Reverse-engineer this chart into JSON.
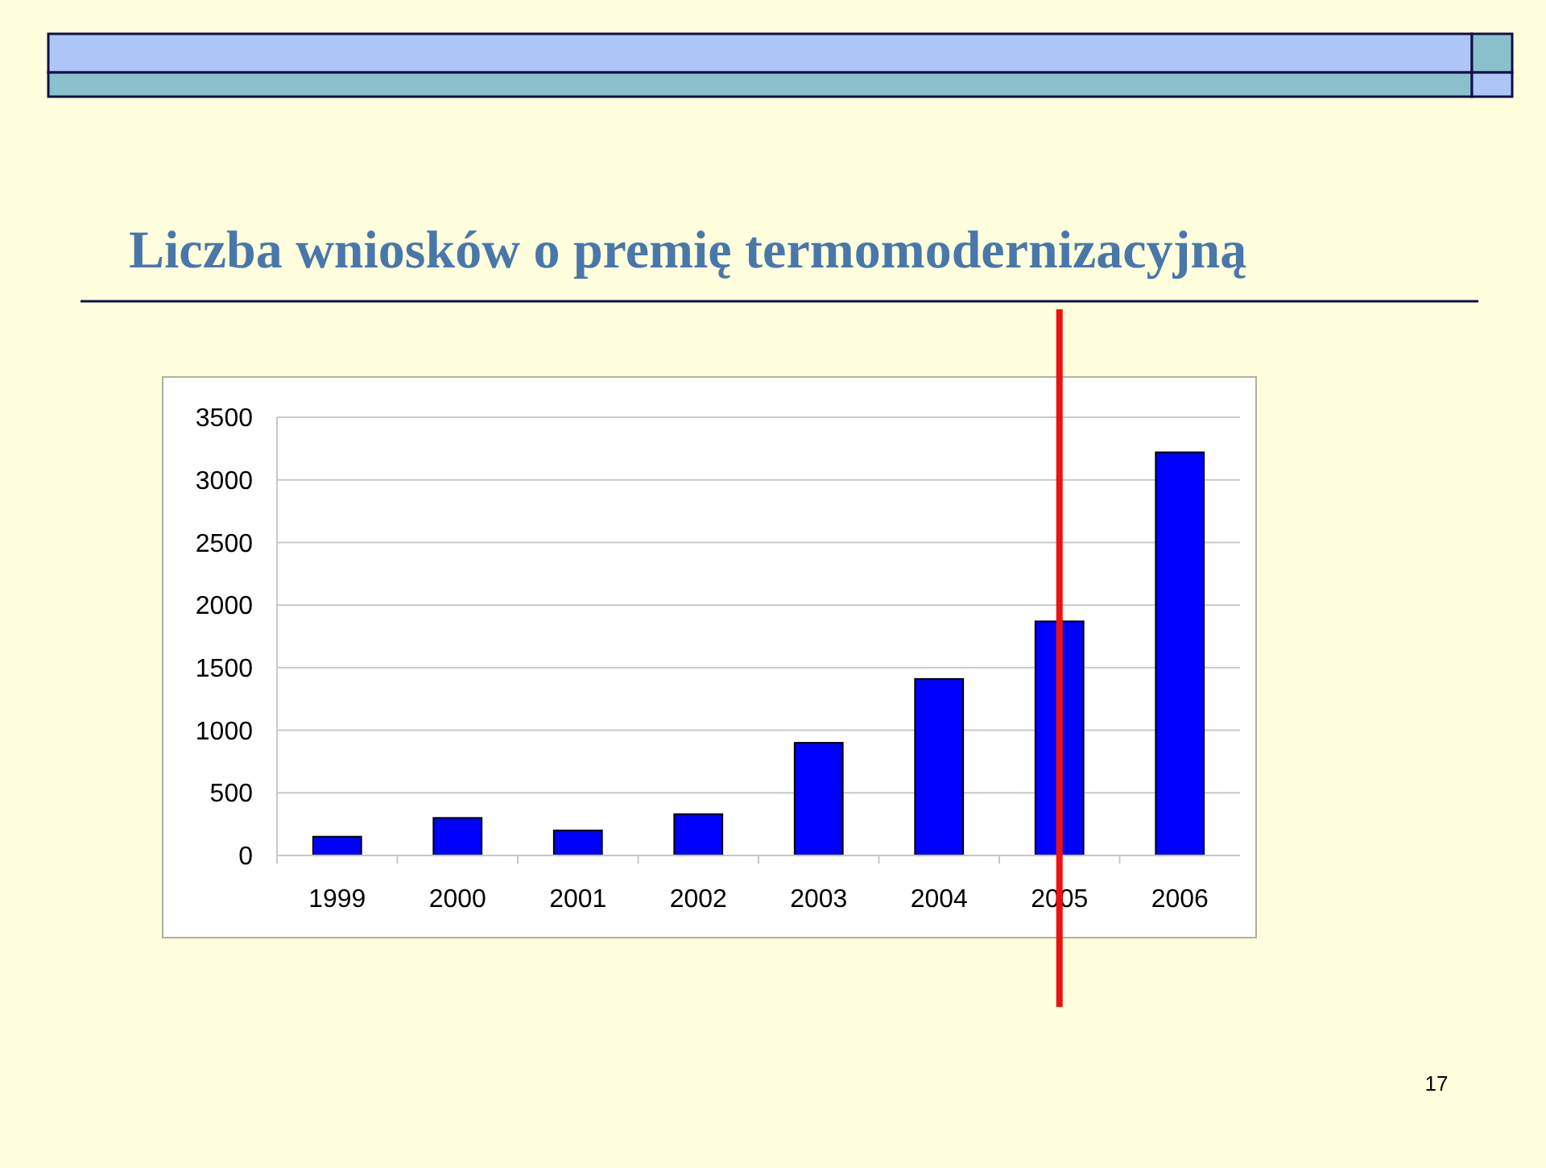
{
  "chart_data": {
    "type": "bar",
    "title": "Liczba wniosków o premię termomodernizacyjną",
    "categories": [
      "1999",
      "2000",
      "2001",
      "2002",
      "2003",
      "2004",
      "2005",
      "2006"
    ],
    "values": [
      150,
      300,
      200,
      330,
      900,
      1410,
      1870,
      3220
    ],
    "color": "#0000ff",
    "ylim": [
      0,
      3500
    ],
    "yticks": [
      0,
      500,
      1000,
      1500,
      2000,
      2500,
      3000,
      3500
    ],
    "grid": "y",
    "ref_lines": [
      {
        "axis": "x",
        "value": "2005",
        "label": null,
        "color": "#ee1111"
      }
    ],
    "annotations": [
      "17"
    ]
  }
}
